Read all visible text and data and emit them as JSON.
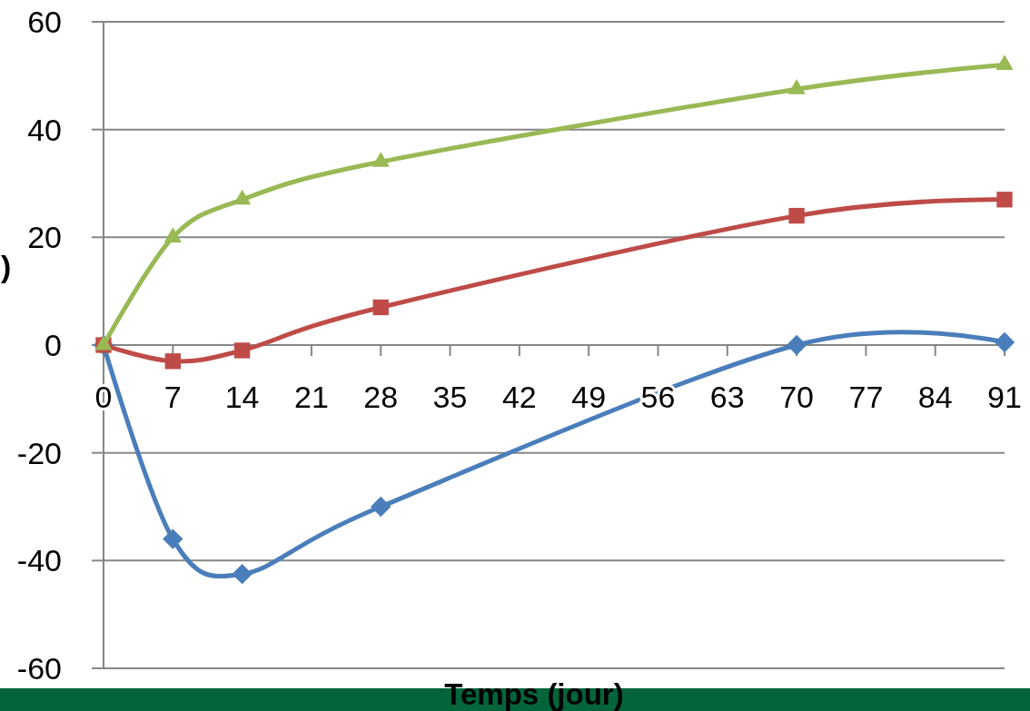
{
  "chart_data": {
    "type": "line",
    "xlabel": "Temps (jour)",
    "ylabel": ")",
    "x": [
      0,
      7,
      14,
      28,
      70,
      91
    ],
    "xlim": [
      0,
      91
    ],
    "xticks": [
      0,
      7,
      14,
      21,
      28,
      35,
      42,
      49,
      56,
      63,
      70,
      77,
      84,
      91
    ],
    "ylim": [
      -60,
      60
    ],
    "yticks": [
      -60,
      -40,
      -20,
      0,
      20,
      40,
      60
    ],
    "grid": "y",
    "line_style": "solid",
    "series": [
      {
        "color": "#4a7ebb",
        "marker": "diamond",
        "values": [
          0,
          -36,
          -42.5,
          -30,
          0,
          0.5
        ]
      },
      {
        "color": "#be4b48",
        "marker": "square",
        "values": [
          0,
          -3,
          -1,
          7,
          24,
          27
        ]
      },
      {
        "color": "#98b954",
        "marker": "triangle",
        "values": [
          0,
          20,
          27,
          34,
          47.5,
          52
        ]
      }
    ]
  }
}
